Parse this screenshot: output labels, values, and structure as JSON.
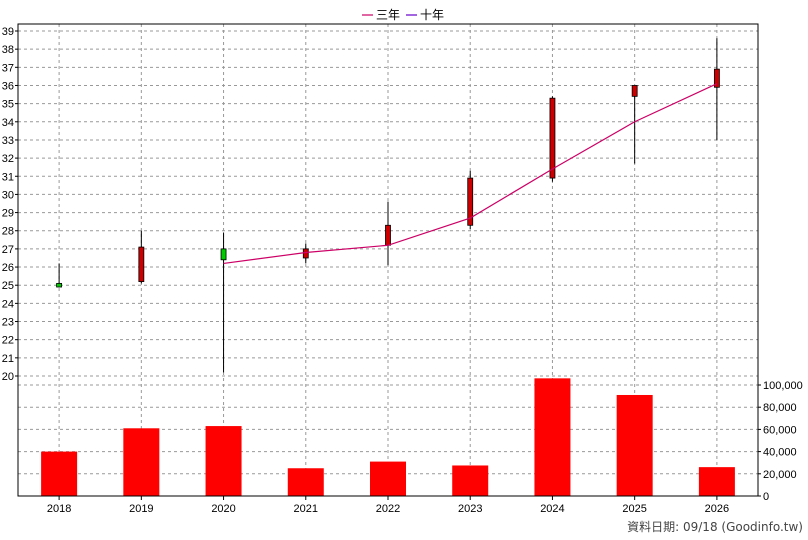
{
  "chart_data": {
    "type": "candlestick",
    "legend": [
      {
        "name": "三年",
        "color": "#cc0066"
      },
      {
        "name": "十年",
        "color": "#6600cc"
      }
    ],
    "categories": [
      "2018",
      "2019",
      "2020",
      "2021",
      "2022",
      "2023",
      "2024",
      "2025",
      "2026"
    ],
    "candles": [
      {
        "year": "2018",
        "open": 25.1,
        "high": 26.2,
        "low": 24.9,
        "close": 24.9
      },
      {
        "year": "2019",
        "open": 25.2,
        "high": 28.0,
        "low": 25.1,
        "close": 27.1
      },
      {
        "year": "2020",
        "open": 27.0,
        "high": 27.9,
        "low": 20.2,
        "close": 26.4
      },
      {
        "year": "2021",
        "open": 26.5,
        "high": 27.3,
        "low": 26.2,
        "close": 27.0
      },
      {
        "year": "2022",
        "open": 27.2,
        "high": 29.6,
        "low": 26.1,
        "close": 28.3
      },
      {
        "year": "2023",
        "open": 28.3,
        "high": 31.3,
        "low": 28.1,
        "close": 30.9
      },
      {
        "year": "2024",
        "open": 30.9,
        "high": 35.4,
        "low": 30.7,
        "close": 35.3
      },
      {
        "year": "2025",
        "open": 35.4,
        "high": 36.0,
        "low": 31.7,
        "close": 36.0
      },
      {
        "year": "2026",
        "open": 35.9,
        "high": 38.6,
        "low": 33.0,
        "close": 36.9
      }
    ],
    "three_year_avg": [
      {
        "year": "2020",
        "value": 26.2
      },
      {
        "year": "2021",
        "value": 26.8
      },
      {
        "year": "2022",
        "value": 27.2
      },
      {
        "year": "2023",
        "value": 28.7
      },
      {
        "year": "2024",
        "value": 31.4
      },
      {
        "year": "2025",
        "value": 34.0
      },
      {
        "year": "2026",
        "value": 36.1
      }
    ],
    "volume": [
      40000,
      61000,
      63000,
      25000,
      31000,
      27500,
      106000,
      91000,
      26000
    ],
    "price_axis": {
      "min": 20,
      "max": 39,
      "ticks": [
        "20",
        "21",
        "22",
        "23",
        "24",
        "25",
        "26",
        "27",
        "28",
        "29",
        "30",
        "31",
        "32",
        "33",
        "34",
        "35",
        "36",
        "37",
        "38",
        "39"
      ]
    },
    "volume_axis": {
      "min": 0,
      "max": 100000,
      "ticks": [
        "0",
        "20,000",
        "40,000",
        "60,000",
        "80,000",
        "100,000"
      ]
    },
    "grid": true,
    "legend_position": "top-center",
    "colors": {
      "up": "#cc0000",
      "down": "#00cc00",
      "volume": "#ff0000",
      "line": "#cc0066",
      "grid": "#999999"
    }
  },
  "footer": "資料日期: 09/18  (Goodinfo.tw)"
}
